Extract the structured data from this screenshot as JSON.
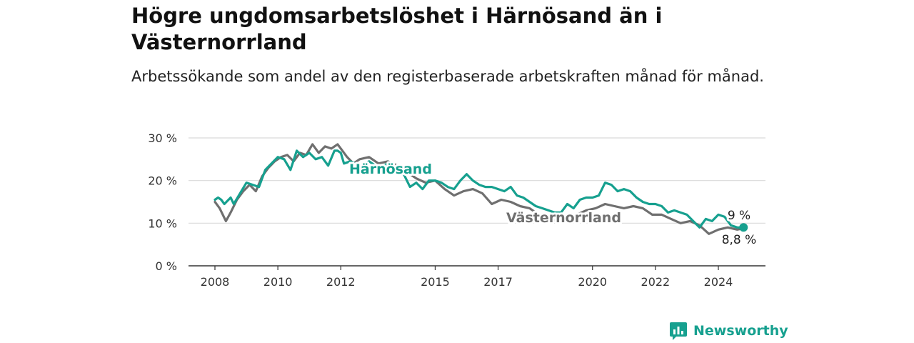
{
  "title": "Högre ungdomsarbetslöshet i Härnösand än i Västernorrland",
  "subtitle": "Arbetssökande som andel av den registerbaserade arbetskraften månad för månad.",
  "brand": {
    "name": "Newsworthy",
    "logo_icon": "bar-chart-speech-bubble-icon"
  },
  "colors": {
    "harnosand": "#16a08f",
    "vasternorrland": "#6f6f6f",
    "grid": "#d9d9d9",
    "axis": "#333333"
  },
  "chart_data": {
    "type": "line",
    "title": "",
    "xlabel": "",
    "ylabel": "",
    "xlim": [
      2008,
      2025.5
    ],
    "ylim": [
      0,
      30
    ],
    "grid": true,
    "x_ticks": [
      2008,
      2010,
      2012,
      2015,
      2017,
      2020,
      2022,
      2024
    ],
    "y_ticks": [
      {
        "value": 0,
        "label": "0 %"
      },
      {
        "value": 10,
        "label": "10 %"
      },
      {
        "value": 20,
        "label": "20 %"
      },
      {
        "value": 30,
        "label": "30 %"
      }
    ],
    "series": [
      {
        "name": "Härnösand",
        "key": "harnosand",
        "end_label": "9 %",
        "x": [
          2008.0,
          2008.1,
          2008.2,
          2008.3,
          2008.5,
          2008.6,
          2008.8,
          2009.0,
          2009.2,
          2009.4,
          2009.6,
          2009.8,
          2010.0,
          2010.2,
          2010.4,
          2010.6,
          2010.8,
          2011.0,
          2011.2,
          2011.4,
          2011.6,
          2011.8,
          2011.9,
          2012.0,
          2012.1,
          2012.3,
          2012.6,
          2012.9,
          2013.2,
          2013.5,
          2013.8,
          2014.0,
          2014.2,
          2014.4,
          2014.6,
          2014.8,
          2015.0,
          2015.2,
          2015.4,
          2015.6,
          2015.8,
          2016.0,
          2016.2,
          2016.4,
          2016.6,
          2016.8,
          2017.0,
          2017.2,
          2017.4,
          2017.6,
          2017.8,
          2018.0,
          2018.2,
          2018.4,
          2018.6,
          2018.8,
          2019.0,
          2019.2,
          2019.4,
          2019.6,
          2019.8,
          2020.0,
          2020.2,
          2020.4,
          2020.6,
          2020.8,
          2021.0,
          2021.2,
          2021.4,
          2021.6,
          2021.8,
          2022.0,
          2022.2,
          2022.4,
          2022.6,
          2022.8,
          2023.0,
          2023.2,
          2023.4,
          2023.6,
          2023.8,
          2024.0,
          2024.2,
          2024.4,
          2024.6,
          2024.8
        ],
        "values": [
          15.5,
          16.0,
          15.5,
          14.5,
          16.0,
          14.5,
          17.0,
          19.5,
          19.0,
          18.5,
          22.5,
          24.0,
          25.5,
          25.0,
          22.5,
          27.0,
          25.5,
          26.5,
          25.0,
          25.5,
          23.5,
          27.0,
          27.0,
          26.5,
          24.0,
          24.5,
          23.5,
          24.5,
          23.0,
          24.0,
          22.5,
          21.5,
          18.5,
          19.5,
          18.0,
          20.0,
          20.0,
          19.5,
          18.5,
          18.0,
          20.0,
          21.5,
          20.0,
          19.0,
          18.5,
          18.5,
          18.0,
          17.5,
          18.5,
          16.5,
          16.0,
          15.0,
          14.0,
          13.5,
          13.0,
          12.5,
          12.5,
          14.5,
          13.5,
          15.5,
          16.0,
          16.0,
          16.5,
          19.5,
          19.0,
          17.5,
          18.0,
          17.5,
          16.0,
          15.0,
          14.5,
          14.5,
          14.0,
          12.5,
          13.0,
          12.5,
          12.0,
          10.5,
          9.0,
          11.0,
          10.5,
          12.0,
          11.5,
          9.5,
          9.0,
          9.0
        ]
      },
      {
        "name": "Västernorrland",
        "key": "vasternorrland",
        "end_label": "8,8 %",
        "x": [
          2008.0,
          2008.15,
          2008.35,
          2008.5,
          2008.7,
          2008.9,
          2009.1,
          2009.3,
          2009.5,
          2009.7,
          2009.9,
          2010.1,
          2010.3,
          2010.5,
          2010.7,
          2010.9,
          2011.1,
          2011.3,
          2011.5,
          2011.7,
          2011.9,
          2012.0,
          2012.2,
          2012.4,
          2012.6,
          2012.9,
          2013.2,
          2013.5,
          2013.8,
          2014.1,
          2014.4,
          2014.7,
          2015.0,
          2015.3,
          2015.6,
          2015.9,
          2016.2,
          2016.5,
          2016.8,
          2017.1,
          2017.4,
          2017.7,
          2018.0,
          2018.3,
          2018.6,
          2018.9,
          2019.2,
          2019.5,
          2019.8,
          2020.1,
          2020.4,
          2020.7,
          2021.0,
          2021.3,
          2021.6,
          2021.9,
          2022.2,
          2022.5,
          2022.8,
          2023.1,
          2023.4,
          2023.7,
          2024.0,
          2024.3,
          2024.6,
          2024.8
        ],
        "values": [
          15.0,
          13.5,
          10.5,
          12.5,
          15.5,
          17.5,
          19.0,
          17.5,
          21.0,
          23.0,
          24.5,
          25.5,
          26.0,
          24.5,
          26.5,
          26.0,
          28.5,
          26.5,
          28.0,
          27.5,
          28.5,
          27.5,
          25.5,
          24.0,
          25.0,
          25.5,
          24.0,
          24.5,
          23.5,
          22.0,
          20.5,
          19.5,
          20.0,
          18.0,
          16.5,
          17.5,
          18.0,
          17.0,
          14.5,
          15.5,
          15.0,
          14.0,
          13.5,
          12.0,
          11.0,
          10.5,
          11.5,
          12.0,
          13.0,
          13.5,
          14.5,
          14.0,
          13.5,
          14.0,
          13.5,
          12.0,
          12.0,
          11.0,
          10.0,
          10.5,
          9.5,
          7.5,
          8.5,
          9.0,
          8.5,
          8.8
        ]
      }
    ]
  }
}
